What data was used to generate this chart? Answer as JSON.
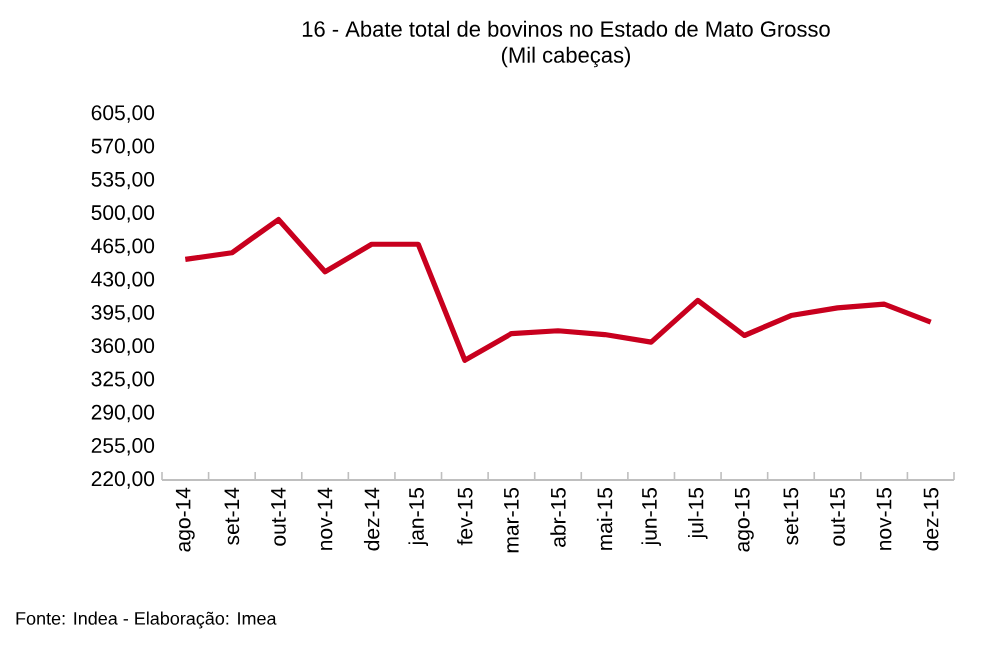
{
  "chart_data": {
    "type": "line",
    "title": "16 - Abate total de bovinos no Estado de Mato Grosso",
    "subtitle": "(Mil cabeças)",
    "categories": [
      "ago-14",
      "set-14",
      "out-14",
      "nov-14",
      "dez-14",
      "jan-15",
      "fev-15",
      "mar-15",
      "abr-15",
      "mai-15",
      "jun-15",
      "jul-15",
      "ago-15",
      "set-15",
      "out-15",
      "nov-15",
      "dez-15"
    ],
    "values": [
      452,
      459,
      494,
      439,
      468,
      468,
      346,
      374,
      377,
      373,
      365,
      409,
      372,
      393,
      401,
      405,
      386
    ],
    "color": "#c8001e",
    "marker": "none",
    "line_style": "solid",
    "grid": false,
    "ylim": [
      220,
      605
    ],
    "yticks": [
      {
        "value": 220,
        "label": "220,00"
      },
      {
        "value": 255,
        "label": "255,00"
      },
      {
        "value": 290,
        "label": "290,00"
      },
      {
        "value": 325,
        "label": "325,00"
      },
      {
        "value": 360,
        "label": "360,00"
      },
      {
        "value": 395,
        "label": "395,00"
      },
      {
        "value": 430,
        "label": "430,00"
      },
      {
        "value": 465,
        "label": "465,00"
      },
      {
        "value": 500,
        "label": "500,00"
      },
      {
        "value": 535,
        "label": "535,00"
      },
      {
        "value": 570,
        "label": "570,00"
      },
      {
        "value": 605,
        "label": "605,00"
      }
    ],
    "annotations": [
      "Fonte: Indea - Elaboração: Imea"
    ]
  }
}
